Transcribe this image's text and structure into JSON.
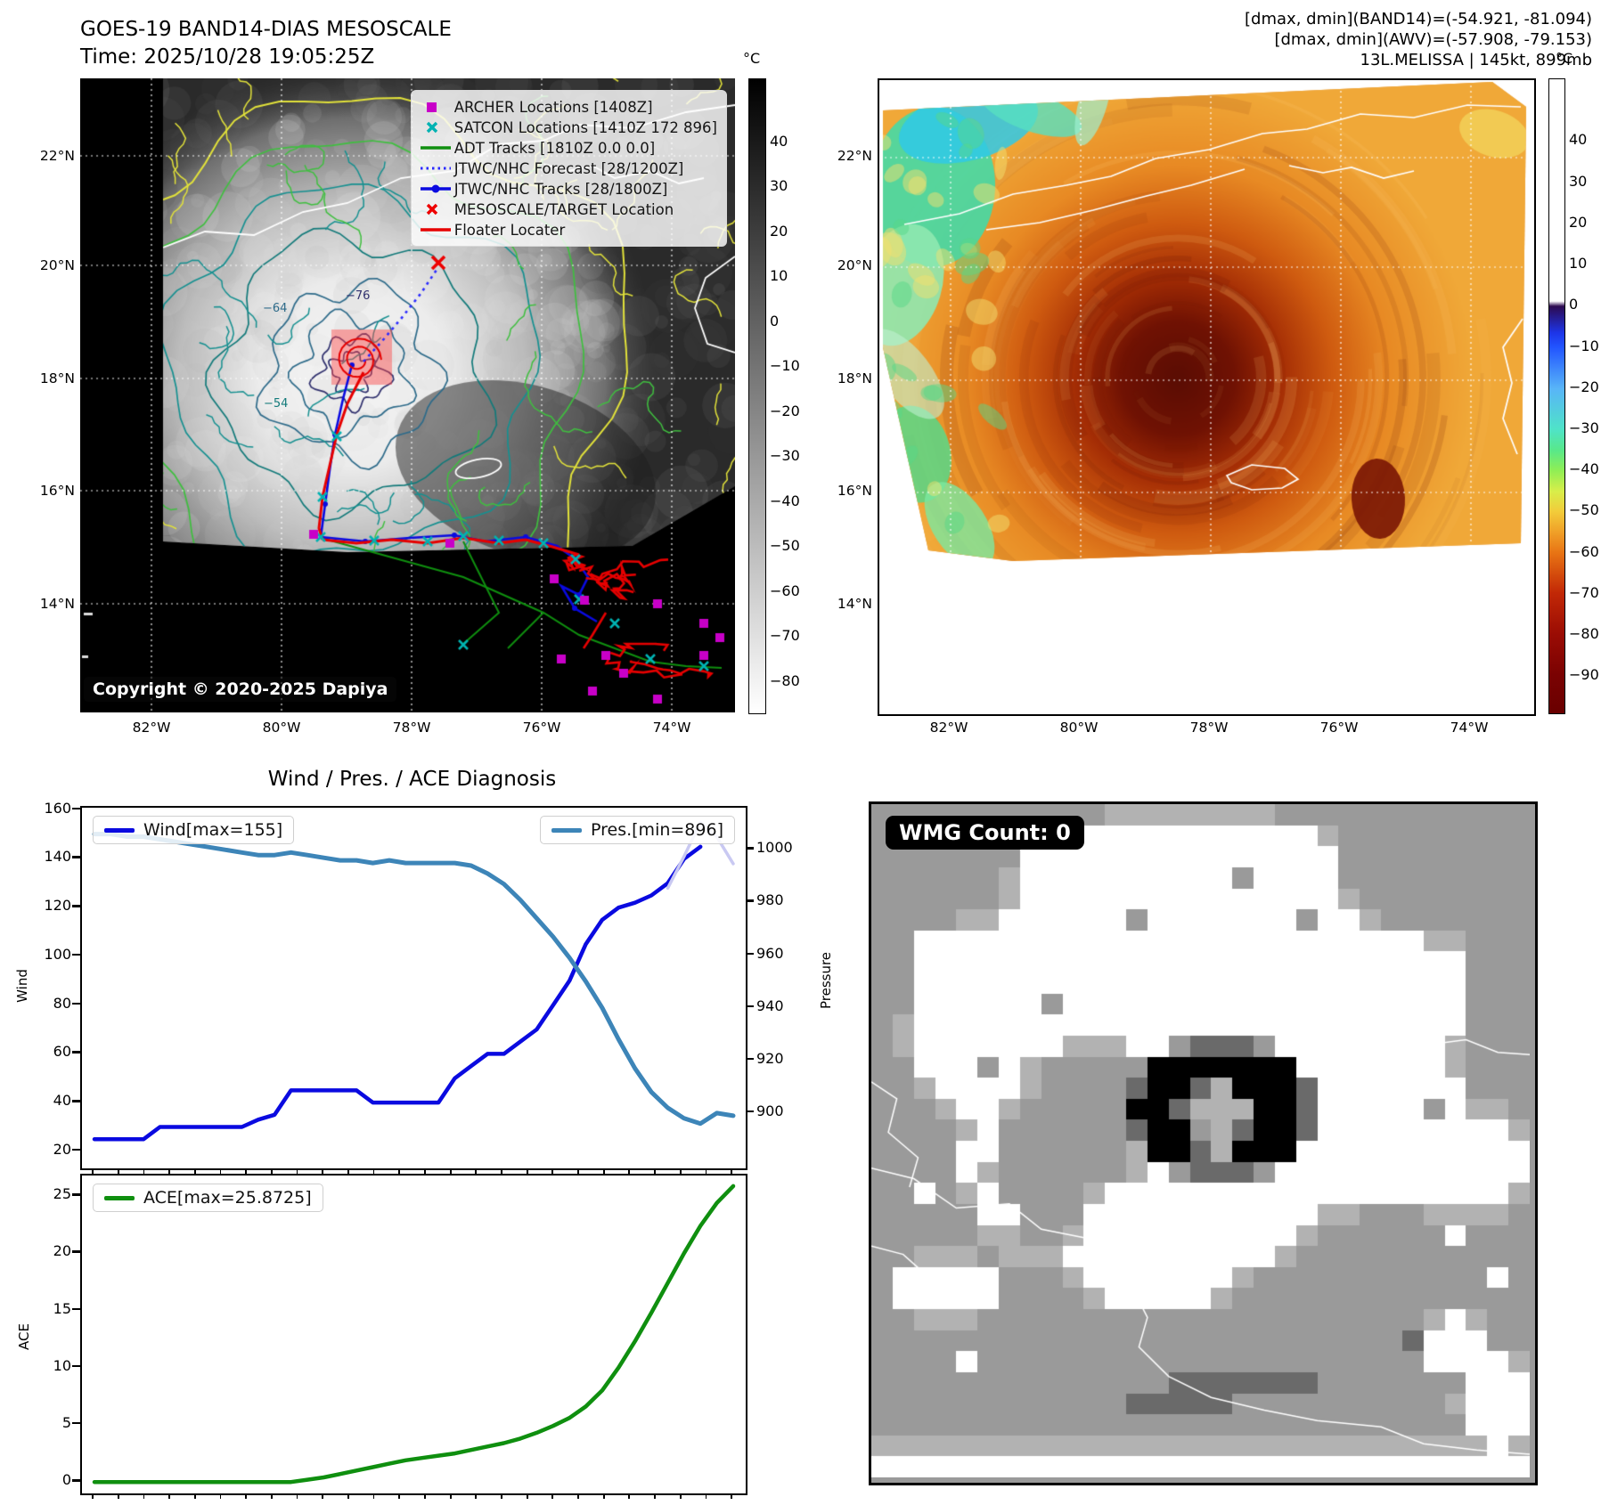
{
  "panel_band14": {
    "title": "GOES-19 BAND14-DIAS MESOSCALE",
    "time_label": "Time: 2025/10/28 19:05:25Z",
    "copyright": "Copyright © 2020-2025 Dapiya",
    "legend": [
      {
        "marker": "square",
        "color": "#c800c8",
        "label": "ARCHER Locations [1408Z]"
      },
      {
        "marker": "x",
        "color": "#00b2b2",
        "label": "SATCON Locations [1410Z 172 896]"
      },
      {
        "marker": "line",
        "color": "#0f8f0f",
        "label": "ADT Tracks [1810Z 0.0 0.0]"
      },
      {
        "marker": "dotted",
        "color": "#2a2aff",
        "label": "JTWC/NHC Forecast [28/1200Z]"
      },
      {
        "marker": "line-dot",
        "color": "#0a0ae0",
        "label": "JTWC/NHC Tracks [28/1800Z]"
      },
      {
        "marker": "x",
        "color": "#ee0000",
        "label": "MESOSCALE/TARGET Location"
      },
      {
        "marker": "line",
        "color": "#e60000",
        "label": "Floater Locater"
      }
    ],
    "colorbar": {
      "unit": "°C",
      "ticks": [
        40,
        30,
        20,
        10,
        0,
        -10,
        -20,
        -30,
        -40,
        -50,
        -60,
        -70,
        -80
      ],
      "vtop": 54,
      "vbottom": -87
    },
    "lat_ticks": [
      "22°N",
      "20°N",
      "18°N",
      "16°N",
      "14°N"
    ],
    "lon_ticks": [
      "82°W",
      "80°W",
      "78°W",
      "76°W",
      "74°W"
    ],
    "contour_labels": [
      "-76",
      "-64",
      "-54"
    ]
  },
  "panel_awv": {
    "header_lines": [
      "[dmax, dmin](BAND14)=(-54.921, -81.094)",
      "[dmax, dmin](AWV)=(-57.908, -79.153)",
      "13L.MELISSA | 145kt, 899mb"
    ],
    "colorbar": {
      "unit": "°C",
      "ticks": [
        40,
        30,
        20,
        10,
        0,
        -10,
        -20,
        -30,
        -40,
        -50,
        -60,
        -70,
        -80,
        -90
      ],
      "vtop": 55,
      "vbottom": -99,
      "stops": [
        {
          "f": 0,
          "c": "#ffffff"
        },
        {
          "f": 0.35,
          "c": "#ffffff"
        },
        {
          "f": 0.358,
          "c": "#2d0a50"
        },
        {
          "f": 0.4,
          "c": "#1d35e8"
        },
        {
          "f": 0.423,
          "c": "#2255ff"
        },
        {
          "f": 0.488,
          "c": "#58b5f8"
        },
        {
          "f": 0.552,
          "c": "#4fe3c8"
        },
        {
          "f": 0.585,
          "c": "#58e88a"
        },
        {
          "f": 0.617,
          "c": "#8fee55"
        },
        {
          "f": 0.65,
          "c": "#d8ee4a"
        },
        {
          "f": 0.682,
          "c": "#f2cc3a"
        },
        {
          "f": 0.714,
          "c": "#f0a028"
        },
        {
          "f": 0.747,
          "c": "#e87414"
        },
        {
          "f": 0.81,
          "c": "#c22806"
        },
        {
          "f": 0.876,
          "c": "#9a0c04"
        },
        {
          "f": 0.94,
          "c": "#7a0202"
        },
        {
          "f": 1,
          "c": "#690000"
        }
      ]
    },
    "lat_ticks": [
      "22°N",
      "20°N",
      "18°N",
      "16°N",
      "14°N"
    ],
    "lon_ticks": [
      "82°W",
      "80°W",
      "78°W",
      "76°W",
      "74°W"
    ]
  },
  "wmg": {
    "count_label": "WMG Count: 0"
  },
  "chart_data": [
    {
      "type": "line",
      "title": "Wind / Pres. / ACE Diagnosis",
      "ylabel": "Wind",
      "y2label": "Pressure",
      "ylim": [
        13,
        161
      ],
      "y2lim": [
        879,
        1016
      ],
      "yticks": [
        20,
        40,
        60,
        80,
        100,
        120,
        140,
        160
      ],
      "y2ticks": [
        900,
        920,
        940,
        960,
        980,
        1000
      ],
      "legend_position": "top-left / top-right",
      "grid": false,
      "series": [
        {
          "name": "Wind[max=155]",
          "color": "#0a0ae0",
          "axis": "left",
          "width": 4.5,
          "legend": true,
          "values": [
            25,
            25,
            25,
            25,
            30,
            30,
            30,
            30,
            30,
            30,
            33,
            35,
            45,
            45,
            45,
            45,
            45,
            40,
            40,
            40,
            40,
            40,
            50,
            55,
            60,
            60,
            65,
            70,
            80,
            90,
            105,
            115,
            120,
            122,
            125,
            130,
            140,
            145,
            null,
            null
          ]
        },
        {
          "name": "Pres.[min=896]",
          "color": "#3d85b8",
          "axis": "right",
          "width": 5,
          "legend": true,
          "values": [
            1006,
            1006,
            1005,
            1005,
            1004,
            1003,
            1002,
            1001,
            1000,
            999,
            998,
            998,
            999,
            998,
            997,
            996,
            996,
            995,
            996,
            995,
            995,
            995,
            995,
            994,
            991,
            987,
            981,
            974,
            967,
            959,
            950,
            940,
            928,
            917,
            908,
            902,
            898,
            896,
            900,
            899
          ]
        },
        {
          "name": "Wind forecast (light)",
          "color": "#c9c9f2",
          "axis": "left",
          "width": 3.5,
          "legend": false,
          "values": [
            null,
            null,
            null,
            null,
            null,
            null,
            null,
            null,
            null,
            null,
            null,
            null,
            null,
            null,
            null,
            null,
            null,
            null,
            null,
            null,
            null,
            null,
            null,
            null,
            null,
            null,
            null,
            null,
            null,
            null,
            null,
            null,
            null,
            null,
            null,
            128,
            141,
            155,
            149,
            138
          ]
        }
      ]
    },
    {
      "type": "line",
      "title": "",
      "ylabel": "ACE",
      "ylim": [
        -1,
        26.8
      ],
      "yticks": [
        0,
        5,
        10,
        15,
        20,
        25
      ],
      "grid": false,
      "series": [
        {
          "name": "ACE[max=25.8725]",
          "color": "#0f8f0f",
          "axis": "left",
          "width": 4.5,
          "legend": true,
          "values": [
            0,
            0,
            0,
            0,
            0,
            0,
            0,
            0,
            0,
            0,
            0,
            0,
            0,
            0.2,
            0.4,
            0.7,
            1,
            1.3,
            1.6,
            1.9,
            2.1,
            2.3,
            2.5,
            2.8,
            3.1,
            3.4,
            3.8,
            4.3,
            4.9,
            5.6,
            6.6,
            8,
            10,
            12.3,
            14.8,
            17.4,
            20,
            22.4,
            24.4,
            25.8725
          ]
        }
      ]
    }
  ]
}
